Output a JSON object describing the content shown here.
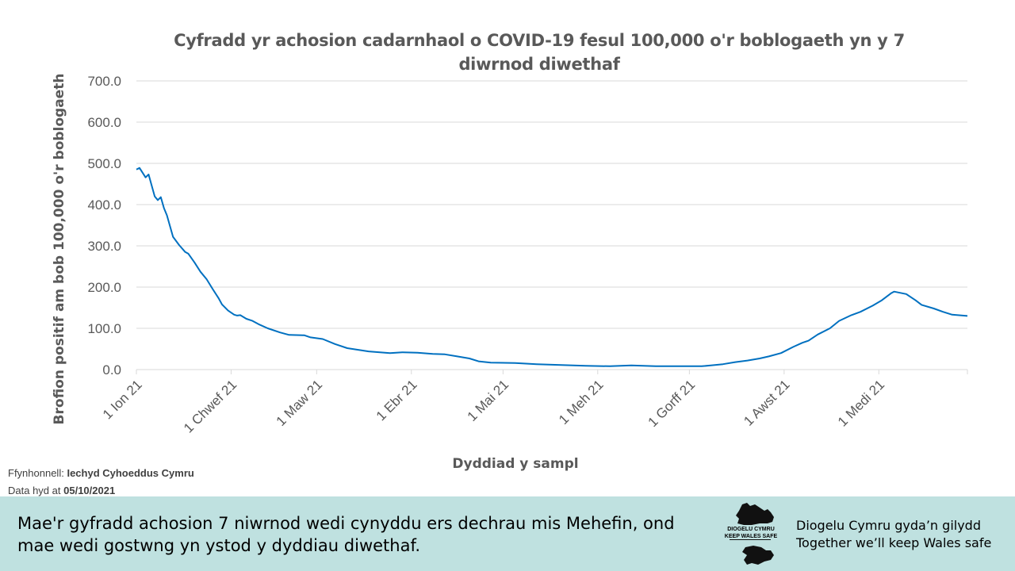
{
  "chart_data": {
    "type": "line",
    "title": "Cyfradd yr achosion cadarnhaol o COVID-19 fesul 100,000 o'r boblogaeth yn y 7 diwrnod diwethaf",
    "xlabel": "Dyddiad  y sampl",
    "ylabel": "Brofion positif  am bob 100,000 o'r boblogaeth",
    "ylim": [
      0,
      700
    ],
    "yticks": [
      "0.0",
      "100.0",
      "200.0",
      "300.0",
      "400.0",
      "500.0",
      "600.0",
      "700.0"
    ],
    "xticks": [
      "1 Ion 21",
      "1 Chwef 21",
      "1 Maw 21",
      "1 Ebr 21",
      "1 Mai 21",
      "1 Meh 21",
      "1 Gorff 21",
      "1 Awst 21",
      "1 Medi 21"
    ],
    "x_start": "2021-01-01",
    "x_end": "2021-09-30",
    "grid": true,
    "line_color": "#0070c0",
    "series": [
      {
        "values": [
          {
            "x": "2021-01-01",
            "y": 485
          },
          {
            "x": "2021-01-02",
            "y": 489
          },
          {
            "x": "2021-01-04",
            "y": 466
          },
          {
            "x": "2021-01-05",
            "y": 473
          },
          {
            "x": "2021-01-07",
            "y": 420
          },
          {
            "x": "2021-01-08",
            "y": 411
          },
          {
            "x": "2021-01-09",
            "y": 418
          },
          {
            "x": "2021-01-10",
            "y": 392
          },
          {
            "x": "2021-01-11",
            "y": 374
          },
          {
            "x": "2021-01-13",
            "y": 322
          },
          {
            "x": "2021-01-15",
            "y": 302
          },
          {
            "x": "2021-01-17",
            "y": 285
          },
          {
            "x": "2021-01-18",
            "y": 281
          },
          {
            "x": "2021-01-20",
            "y": 260
          },
          {
            "x": "2021-01-22",
            "y": 237
          },
          {
            "x": "2021-01-24",
            "y": 219
          },
          {
            "x": "2021-01-26",
            "y": 195
          },
          {
            "x": "2021-01-28",
            "y": 172
          },
          {
            "x": "2021-01-29",
            "y": 158
          },
          {
            "x": "2021-01-31",
            "y": 143
          },
          {
            "x": "2021-02-02",
            "y": 133
          },
          {
            "x": "2021-02-03",
            "y": 131
          },
          {
            "x": "2021-02-04",
            "y": 132
          },
          {
            "x": "2021-02-06",
            "y": 123
          },
          {
            "x": "2021-02-08",
            "y": 118
          },
          {
            "x": "2021-02-10",
            "y": 110
          },
          {
            "x": "2021-02-13",
            "y": 100
          },
          {
            "x": "2021-02-17",
            "y": 90
          },
          {
            "x": "2021-02-20",
            "y": 84
          },
          {
            "x": "2021-02-25",
            "y": 83
          },
          {
            "x": "2021-02-27",
            "y": 78
          },
          {
            "x": "2021-03-03",
            "y": 74
          },
          {
            "x": "2021-03-07",
            "y": 62
          },
          {
            "x": "2021-03-11",
            "y": 52
          },
          {
            "x": "2021-03-18",
            "y": 44
          },
          {
            "x": "2021-03-25",
            "y": 40
          },
          {
            "x": "2021-03-29",
            "y": 42
          },
          {
            "x": "2021-04-03",
            "y": 41
          },
          {
            "x": "2021-04-08",
            "y": 38
          },
          {
            "x": "2021-04-12",
            "y": 37
          },
          {
            "x": "2021-04-16",
            "y": 32
          },
          {
            "x": "2021-04-20",
            "y": 27
          },
          {
            "x": "2021-04-23",
            "y": 20
          },
          {
            "x": "2021-04-27",
            "y": 17
          },
          {
            "x": "2021-05-05",
            "y": 16
          },
          {
            "x": "2021-05-12",
            "y": 13
          },
          {
            "x": "2021-05-20",
            "y": 11
          },
          {
            "x": "2021-05-28",
            "y": 9
          },
          {
            "x": "2021-06-05",
            "y": 8
          },
          {
            "x": "2021-06-12",
            "y": 10
          },
          {
            "x": "2021-06-20",
            "y": 8
          },
          {
            "x": "2021-06-28",
            "y": 8
          },
          {
            "x": "2021-07-05",
            "y": 8
          },
          {
            "x": "2021-07-08",
            "y": 10
          },
          {
            "x": "2021-07-12",
            "y": 13
          },
          {
            "x": "2021-07-16",
            "y": 18
          },
          {
            "x": "2021-07-20",
            "y": 22
          },
          {
            "x": "2021-07-24",
            "y": 27
          },
          {
            "x": "2021-07-27",
            "y": 32
          },
          {
            "x": "2021-07-31",
            "y": 40
          },
          {
            "x": "2021-08-04",
            "y": 55
          },
          {
            "x": "2021-08-07",
            "y": 65
          },
          {
            "x": "2021-08-09",
            "y": 70
          },
          {
            "x": "2021-08-12",
            "y": 85
          },
          {
            "x": "2021-08-16",
            "y": 100
          },
          {
            "x": "2021-08-19",
            "y": 118
          },
          {
            "x": "2021-08-23",
            "y": 132
          },
          {
            "x": "2021-08-26",
            "y": 140
          },
          {
            "x": "2021-08-30",
            "y": 155
          },
          {
            "x": "2021-09-02",
            "y": 168
          },
          {
            "x": "2021-09-05",
            "y": 185
          },
          {
            "x": "2021-09-06",
            "y": 189
          },
          {
            "x": "2021-09-10",
            "y": 183
          },
          {
            "x": "2021-09-13",
            "y": 168
          },
          {
            "x": "2021-09-15",
            "y": 157
          },
          {
            "x": "2021-09-19",
            "y": 148
          },
          {
            "x": "2021-09-22",
            "y": 140
          },
          {
            "x": "2021-09-25",
            "y": 133
          },
          {
            "x": "2021-09-30",
            "y": 130
          }
        ]
      }
    ]
  },
  "source": {
    "label": "Ffynhonnell:",
    "value": "Iechyd Cyhoeddus Cymru",
    "date_label": "Data hyd at",
    "date_value": "05/10/2021"
  },
  "banner": {
    "message": "Mae'r gyfradd achosion  7 niwrnod wedi cynyddu ers dechrau mis Mehefin, ond mae wedi gostwng yn ystod y dyddiau diwethaf.",
    "logo_line1": "DIOGELU CYMRU",
    "logo_line2": "KEEP WALES SAFE",
    "tagline_line1": "Diogelu Cymru gyda’n gilydd",
    "tagline_line2": "Together we’ll keep Wales safe",
    "background": "#bfe1e0"
  }
}
